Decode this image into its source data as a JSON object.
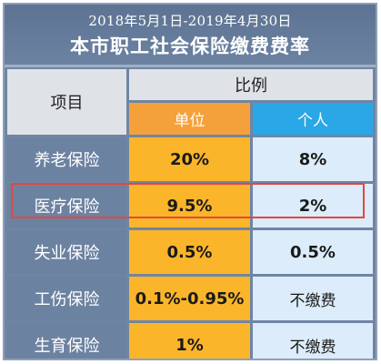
{
  "header": {
    "date_range": "2018年5月1日-2019年4月30日",
    "title": "本市职工社会保险缴费费率"
  },
  "table": {
    "item_header": "项目",
    "ratio_header": "比例",
    "unit_header": "单位",
    "person_header": "个人",
    "rows": [
      {
        "label": "养老保险",
        "unit": "20%",
        "person": "8%"
      },
      {
        "label": "医疗保险",
        "unit": "9.5%",
        "person": "2%"
      },
      {
        "label": "失业保险",
        "unit": "0.5%",
        "person": "0.5%"
      },
      {
        "label": "工伤保险",
        "unit": "0.1%-0.95%",
        "person": "不缴费"
      },
      {
        "label": "生育保险",
        "unit": "1%",
        "person": "不缴费"
      }
    ],
    "highlighted_row": "医疗保险"
  },
  "colors": {
    "header_blue_gray": "#6c82a1",
    "unit_orange": "#f5a13b",
    "unit_cell_yellow": "#fbb52a",
    "person_blue": "#2aa7e6",
    "person_cell_light": "#dcecfa",
    "highlight_red": "#e8453c"
  }
}
